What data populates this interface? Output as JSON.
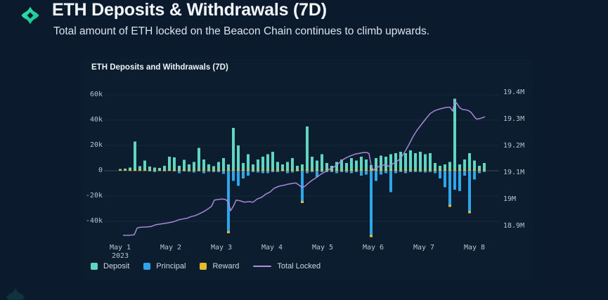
{
  "header": {
    "title": "ETH Deposits & Withdrawals (7D)",
    "subtitle": "Total amount of ETH locked on the Beacon Chain continues to climb upwards.",
    "logo_icon": "four-petal-diamond",
    "logo_color_top": "#38e7b0",
    "logo_color_bottom": "#12bf8e"
  },
  "chart_data": {
    "type": "bar",
    "subtype": "stacked-bars-with-line-overlay",
    "title": "ETH Deposits and Withdrawals (7D)",
    "x_axis": {
      "tick_labels": [
        "May 1",
        "May 2",
        "May 3",
        "May 4",
        "May 5",
        "May 6",
        "May 7",
        "May 8"
      ],
      "year_label": "2023"
    },
    "y_left": {
      "unit": "ETH (thousands)",
      "tick_labels": [
        "60k",
        "40k",
        "20k",
        "0",
        "-20k",
        "-40k"
      ],
      "tick_values_k": [
        60,
        40,
        20,
        0,
        -20,
        -40
      ],
      "range_k": [
        -58,
        64
      ],
      "grid": true
    },
    "y_right": {
      "unit": "ETH (millions)",
      "tick_labels": [
        "19.4M",
        "19.3M",
        "19.2M",
        "19.1M",
        "19M",
        "18.9M"
      ],
      "tick_values_m": [
        19.4,
        19.3,
        19.2,
        19.1,
        19.0,
        18.9
      ],
      "range_m": [
        18.83,
        19.41
      ]
    },
    "bar_step_days": 0.0972,
    "bars": {
      "deposit_k": [
        0.6,
        1,
        1.5,
        22,
        2.5,
        7,
        2.5,
        1.5,
        1.2,
        3,
        10,
        9.5,
        3,
        7.5,
        4,
        6,
        17,
        8,
        4,
        2.5,
        6,
        9,
        4,
        33,
        19,
        5,
        12,
        4,
        8,
        10,
        12,
        14,
        6,
        4,
        6,
        9,
        3,
        4,
        34,
        10,
        7,
        12,
        5,
        3,
        6,
        8,
        5,
        9,
        7,
        10,
        8,
        3,
        9,
        11,
        10,
        12,
        13,
        14,
        13,
        15,
        13,
        14,
        12,
        13,
        5,
        3,
        4,
        6,
        56,
        4,
        8,
        13,
        7,
        3,
        5
      ],
      "reward_k": [
        0.8,
        0.8,
        0.9,
        1,
        1,
        1,
        0.9,
        0.9,
        0.9,
        0.9,
        1,
        1,
        1,
        1,
        1,
        1,
        1,
        1,
        1,
        1.2,
        1,
        1,
        1,
        1,
        1,
        1,
        1,
        1,
        1,
        1,
        1,
        1,
        1,
        1,
        1,
        1,
        1,
        1,
        1,
        1,
        1,
        1,
        1,
        1,
        1,
        1,
        1,
        1,
        1,
        1,
        1,
        1.5,
        1,
        1,
        1,
        1,
        1,
        1,
        1,
        1,
        1,
        1,
        1,
        1,
        1,
        1,
        1,
        1,
        1,
        1,
        1,
        1,
        1,
        1,
        1
      ],
      "principal_k": [
        0,
        0,
        -0.3,
        -0.3,
        -0.4,
        -0.3,
        -0.5,
        -1.2,
        -0.3,
        -0.5,
        -0.4,
        -0.6,
        -2,
        -0.5,
        -0.8,
        -1.5,
        -0.5,
        -2,
        -0.8,
        -1,
        -1,
        -2.5,
        -49,
        -8,
        -12,
        -6,
        -4,
        -1,
        -1.5,
        -2,
        -2,
        -1,
        -1,
        -0.6,
        -2,
        -1.5,
        -0.6,
        -25,
        -2,
        -1,
        -5,
        -1,
        -1,
        -1,
        -2,
        -1,
        -1.5,
        -2,
        -1,
        -4,
        -3,
        -52,
        -8,
        -3,
        -2,
        -17,
        -2,
        -1,
        -2,
        -1,
        -1,
        -1,
        -1.5,
        -1,
        -2,
        -6,
        -13,
        -28,
        -15,
        -16,
        -4,
        -33,
        -7,
        -2,
        -1
      ]
    },
    "line": {
      "name": "Total Locked",
      "unit": "ETH (millions)",
      "x_days": [
        0.056,
        0.167,
        0.278,
        0.333,
        0.389,
        0.5,
        0.611,
        0.708,
        0.819,
        0.931,
        1.042,
        1.153,
        1.236,
        1.319,
        1.403,
        1.486,
        1.569,
        1.653,
        1.736,
        1.806,
        1.861,
        1.931,
        2.014,
        2.083,
        2.139,
        2.181,
        2.236,
        2.292,
        2.375,
        2.458,
        2.542,
        2.625,
        2.708,
        2.792,
        2.875,
        2.958,
        3.042,
        3.139,
        3.222,
        3.306,
        3.389,
        3.472,
        3.528,
        3.583,
        3.639,
        3.708,
        3.792,
        3.875,
        3.958,
        4.042,
        4.125,
        4.208,
        4.292,
        4.389,
        4.472,
        4.556,
        4.639,
        4.722,
        4.806,
        4.875,
        4.917,
        4.958,
        5.0,
        5.056,
        5.111,
        5.181,
        5.25,
        5.306,
        5.361,
        5.431,
        5.5,
        5.569,
        5.639,
        5.708,
        5.792,
        5.875,
        5.958,
        6.042,
        6.125,
        6.208,
        6.292,
        6.375,
        6.444,
        6.514,
        6.569,
        6.611,
        6.653,
        6.708,
        6.764,
        6.819,
        6.875,
        6.931,
        6.986,
        7.042,
        7.097,
        7.153,
        7.208
      ],
      "values_m": [
        18.866,
        18.866,
        18.868,
        18.893,
        18.896,
        18.897,
        18.899,
        18.906,
        18.909,
        18.912,
        18.916,
        18.924,
        18.927,
        18.93,
        18.936,
        18.94,
        18.947,
        18.955,
        18.965,
        18.975,
        18.998,
        19.0,
        19.002,
        19.0,
        18.99,
        18.958,
        18.975,
        18.998,
        18.995,
        18.99,
        18.992,
        18.99,
        19.002,
        19.008,
        19.02,
        19.028,
        19.042,
        19.05,
        19.053,
        19.057,
        19.06,
        19.062,
        19.055,
        19.046,
        19.048,
        19.06,
        19.072,
        19.082,
        19.094,
        19.103,
        19.113,
        19.12,
        19.131,
        19.148,
        19.157,
        19.164,
        19.17,
        19.173,
        19.176,
        19.176,
        19.172,
        19.128,
        19.11,
        19.118,
        19.124,
        19.128,
        19.131,
        19.124,
        19.131,
        19.138,
        19.147,
        19.162,
        19.183,
        19.207,
        19.238,
        19.262,
        19.283,
        19.303,
        19.322,
        19.332,
        19.338,
        19.342,
        19.345,
        19.346,
        19.331,
        19.369,
        19.36,
        19.344,
        19.337,
        19.336,
        19.334,
        19.327,
        19.313,
        19.301,
        19.303,
        19.306,
        19.31
      ]
    },
    "legend": [
      {
        "label": "Deposit",
        "type": "bar",
        "color": "#5fd6c2"
      },
      {
        "label": "Principal",
        "type": "bar",
        "color": "#2ea6e9"
      },
      {
        "label": "Reward",
        "type": "bar",
        "color": "#e5bb2e"
      },
      {
        "label": "Total Locked",
        "type": "line",
        "color": "#b18ce0"
      }
    ],
    "colors": {
      "deposit": "#5fd6c2",
      "principal": "#2ea6e9",
      "reward": "#e5bb2e",
      "total_locked_line": "#b18ce0",
      "grid": "rgba(140,165,195,0.09)",
      "zero_axis": "#36495c",
      "panel_bg": "#0d1d30",
      "page_bg": "#0b1a2c"
    }
  }
}
